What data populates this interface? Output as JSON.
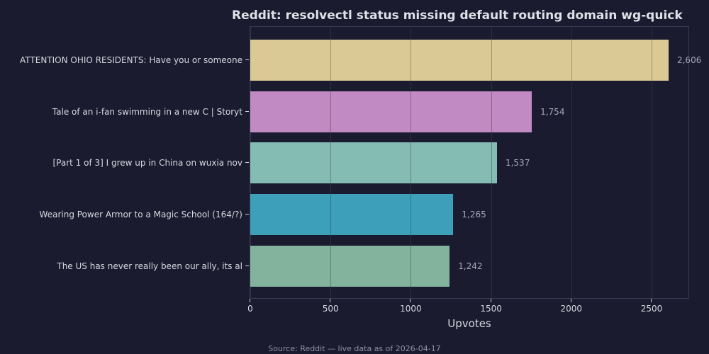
{
  "chart_data": {
    "type": "bar",
    "orientation": "horizontal",
    "title": "Reddit: resolvectl status missing default routing domain wg-quick",
    "xlabel": "Upvotes",
    "ylabel": "",
    "categories": [
      "ATTENTION OHIO RESIDENTS: Have you or someone",
      "Tale of an i-fan swimming in a new C | Storyt",
      "[Part 1 of 3] I grew up in China on wuxia nov",
      "Wearing Power Armor to a Magic School (164/?)",
      "The US has never really been our ally, its al"
    ],
    "values": [
      2606,
      1754,
      1537,
      1265,
      1242
    ],
    "value_labels": [
      "2,606",
      "1,754",
      "1,537",
      "1,265",
      "1,242"
    ],
    "colors": [
      "#dbc995",
      "#c18ac3",
      "#84bbb2",
      "#3d9fba",
      "#83b29d"
    ],
    "xlim": [
      0,
      2740
    ],
    "xticks": [
      0,
      500,
      1000,
      1500,
      2000,
      2500
    ],
    "xtick_labels": [
      "0",
      "500",
      "1000",
      "1500",
      "2000",
      "2500"
    ],
    "grid": "x",
    "legend": null,
    "source_note": "Source: Reddit — live data as of 2026-04-17"
  },
  "page": {
    "background": "#1a1b2e",
    "title": "Reddit: resolvectl status missing default routing domain wg-quick",
    "xlabel": "Upvotes",
    "source": "Source: Reddit — live data as of 2026-04-17"
  }
}
